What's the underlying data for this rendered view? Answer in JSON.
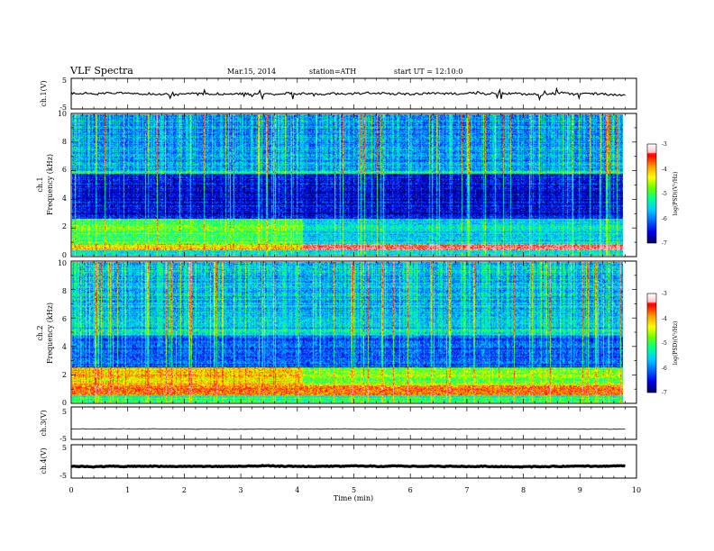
{
  "header": {
    "title": "VLF Spectra",
    "date": "Mar.15, 2014",
    "station": "station=ATH",
    "start_time": "start  UT =   12:10:0"
  },
  "colors": {
    "colormap": [
      "#000066",
      "#0000ee",
      "#0066ff",
      "#00ccff",
      "#00ff99",
      "#66ff00",
      "#ffff00",
      "#ff9900",
      "#ff0000",
      "#ffbbbb",
      "#ffffff"
    ],
    "trace": "#000000",
    "frame": "#000000"
  },
  "chart_data": [
    {
      "type": "line",
      "panel": "ch1",
      "ylabel": "ch.1(V)",
      "ylim": [
        -5,
        5
      ],
      "yticks": [
        "5",
        "-5"
      ],
      "series": [
        {
          "baseline": 0,
          "amplitude": 0.6,
          "spike_amplitude": 1.5
        }
      ]
    },
    {
      "type": "heatmap",
      "panel": "ch1_spec",
      "ylabel": "ch.1",
      "ylabel2": "Frequency (kHz)",
      "ylim": [
        0,
        10
      ],
      "yticks": [
        "0",
        "2",
        "4",
        "6",
        "8",
        "10"
      ],
      "colorbar": {
        "label": "log(PSD)(V²/Hz)",
        "range": [
          -7,
          -3
        ],
        "ticks": [
          "-3",
          "-4",
          "-5",
          "-6",
          "-7"
        ]
      },
      "bands": [
        {
          "f": [
            0.0,
            0.35
          ],
          "value": -5.5
        },
        {
          "f": [
            0.35,
            0.8
          ],
          "value": -3.3,
          "before_4min": -4.3
        },
        {
          "f": [
            0.8,
            2.6
          ],
          "value": -5.6,
          "before_4min": -5.0
        },
        {
          "f": [
            2.6,
            5.8
          ],
          "value": -6.7
        },
        {
          "f": [
            5.8,
            6.0
          ],
          "value": -5.2
        },
        {
          "f": [
            6.0,
            10.0
          ],
          "value": -6.0
        }
      ]
    },
    {
      "type": "heatmap",
      "panel": "ch2_spec",
      "ylabel": "ch.2",
      "ylabel2": "Frequency (kHz)",
      "ylim": [
        0,
        10
      ],
      "yticks": [
        "0",
        "2",
        "4",
        "6",
        "8",
        "10"
      ],
      "colorbar": {
        "label": "log(PSD)(V²/Hz)",
        "range": [
          -7,
          -3
        ],
        "ticks": [
          "-3",
          "-4",
          "-5",
          "-6",
          "-7"
        ]
      },
      "bands": [
        {
          "f": [
            0.0,
            0.5
          ],
          "value": -5.2
        },
        {
          "f": [
            0.5,
            1.2
          ],
          "value": -3.8
        },
        {
          "f": [
            1.2,
            2.5
          ],
          "value": -4.8,
          "before_4min": -4.2
        },
        {
          "f": [
            2.5,
            4.8
          ],
          "value": -6.3
        },
        {
          "f": [
            4.8,
            5.2
          ],
          "value": -5.6
        },
        {
          "f": [
            5.2,
            10.0
          ],
          "value": -5.8
        }
      ]
    },
    {
      "type": "line",
      "panel": "ch3",
      "ylabel": "ch.3(V)",
      "ylim": [
        -5,
        5
      ],
      "yticks": [
        "5",
        "-5"
      ],
      "series": [
        {
          "baseline": -1.8,
          "amplitude": 0.1,
          "spike_amplitude": 0
        }
      ]
    },
    {
      "type": "line",
      "panel": "ch4",
      "ylabel": "ch.4(V)",
      "ylim": [
        -5,
        5
      ],
      "yticks": [
        "5",
        "-5"
      ],
      "series": [
        {
          "baseline": -1.5,
          "amplitude": 0.2,
          "spike_amplitude": 0
        }
      ]
    }
  ],
  "xaxis": {
    "label": "Time  (min)",
    "ticks": [
      "0",
      "1",
      "2",
      "3",
      "4",
      "5",
      "6",
      "7",
      "8",
      "9",
      "10"
    ],
    "xlim": [
      0,
      10
    ],
    "data_end": 9.8
  }
}
